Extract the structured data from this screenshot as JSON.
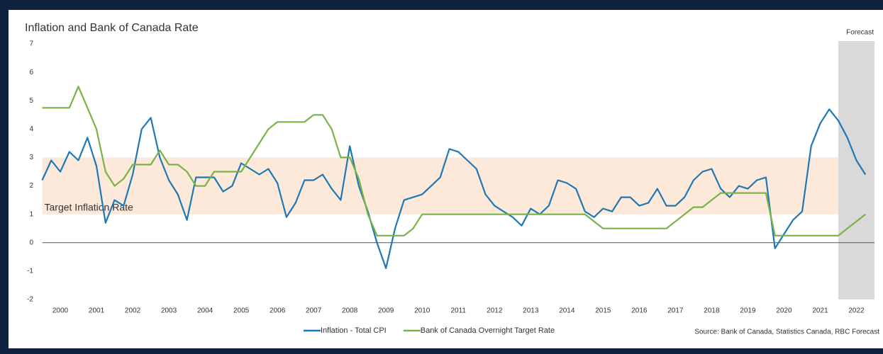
{
  "chart_data": {
    "type": "line",
    "title": "Inflation and Bank of Canada Rate",
    "forecast_label": "Forecast",
    "annotation": "Target Inflation Rate",
    "source": "Source: Bank of Canada, Statistics Canada, RBC Forecast",
    "target_band": [
      1,
      3
    ],
    "forecast_start": 2022,
    "xlim": [
      2000,
      2023
    ],
    "xticks": [
      2000,
      2001,
      2002,
      2003,
      2004,
      2005,
      2006,
      2007,
      2008,
      2009,
      2010,
      2011,
      2012,
      2013,
      2014,
      2015,
      2016,
      2017,
      2018,
      2019,
      2020,
      2021,
      2022
    ],
    "ylim": [
      -2,
      7
    ],
    "yticks": [
      -2,
      -1,
      0,
      1,
      2,
      3,
      4,
      5,
      6,
      7
    ],
    "x": [
      2000,
      2000.25,
      2000.5,
      2000.75,
      2001,
      2001.25,
      2001.5,
      2001.75,
      2002,
      2002.25,
      2002.5,
      2002.75,
      2003,
      2003.25,
      2003.5,
      2003.75,
      2004,
      2004.25,
      2004.5,
      2004.75,
      2005,
      2005.25,
      2005.5,
      2005.75,
      2006,
      2006.25,
      2006.5,
      2006.75,
      2007,
      2007.25,
      2007.5,
      2007.75,
      2008,
      2008.25,
      2008.5,
      2008.75,
      2009,
      2009.25,
      2009.5,
      2009.75,
      2010,
      2010.25,
      2010.5,
      2010.75,
      2011,
      2011.25,
      2011.5,
      2011.75,
      2012,
      2012.25,
      2012.5,
      2012.75,
      2013,
      2013.25,
      2013.5,
      2013.75,
      2014,
      2014.25,
      2014.5,
      2014.75,
      2015,
      2015.25,
      2015.5,
      2015.75,
      2016,
      2016.25,
      2016.5,
      2016.75,
      2017,
      2017.25,
      2017.5,
      2017.75,
      2018,
      2018.25,
      2018.5,
      2018.75,
      2019,
      2019.25,
      2019.5,
      2019.75,
      2020,
      2020.25,
      2020.5,
      2020.75,
      2021,
      2021.25,
      2021.5,
      2021.75,
      2022,
      2022.25,
      2022.5,
      2022.75
    ],
    "series": [
      {
        "name": "Inflation - Total CPI",
        "color": "#1f78b4",
        "values": [
          2.2,
          2.9,
          2.5,
          3.2,
          2.9,
          3.7,
          2.7,
          0.7,
          1.5,
          1.3,
          2.4,
          4.0,
          4.4,
          3.0,
          2.2,
          1.7,
          0.8,
          2.3,
          2.3,
          2.3,
          1.8,
          2.0,
          2.8,
          2.6,
          2.4,
          2.6,
          2.1,
          0.9,
          1.4,
          2.2,
          2.2,
          2.4,
          1.9,
          1.5,
          3.4,
          2.0,
          1.1,
          0.0,
          -0.9,
          0.5,
          1.5,
          1.6,
          1.7,
          2.0,
          2.3,
          3.3,
          3.2,
          2.9,
          2.6,
          1.7,
          1.3,
          1.1,
          0.9,
          0.6,
          1.2,
          1.0,
          1.3,
          2.2,
          2.1,
          1.9,
          1.1,
          0.9,
          1.2,
          1.1,
          1.6,
          1.6,
          1.3,
          1.4,
          1.9,
          1.3,
          1.3,
          1.6,
          2.2,
          2.5,
          2.6,
          1.9,
          1.6,
          2.0,
          1.9,
          2.2,
          2.3,
          -0.2,
          0.3,
          0.8,
          1.1,
          3.4,
          4.2,
          4.7,
          4.3,
          3.7,
          2.9,
          2.4
        ]
      },
      {
        "name": "Bank of Canada Overnight Target Rate",
        "color": "#78b445",
        "values": [
          4.75,
          4.75,
          4.75,
          4.75,
          5.5,
          4.75,
          4.0,
          2.5,
          2.0,
          2.25,
          2.75,
          2.75,
          2.75,
          3.25,
          2.75,
          2.75,
          2.5,
          2.0,
          2.0,
          2.5,
          2.5,
          2.5,
          2.5,
          3.0,
          3.5,
          4.0,
          4.25,
          4.25,
          4.25,
          4.25,
          4.5,
          4.5,
          4.0,
          3.0,
          3.0,
          2.25,
          1.0,
          0.25,
          0.25,
          0.25,
          0.25,
          0.5,
          1.0,
          1.0,
          1.0,
          1.0,
          1.0,
          1.0,
          1.0,
          1.0,
          1.0,
          1.0,
          1.0,
          1.0,
          1.0,
          1.0,
          1.0,
          1.0,
          1.0,
          1.0,
          1.0,
          0.75,
          0.5,
          0.5,
          0.5,
          0.5,
          0.5,
          0.5,
          0.5,
          0.5,
          0.75,
          1.0,
          1.25,
          1.25,
          1.5,
          1.75,
          1.75,
          1.75,
          1.75,
          1.75,
          1.75,
          0.25,
          0.25,
          0.25,
          0.25,
          0.25,
          0.25,
          0.25,
          0.25,
          0.5,
          0.75,
          1.0
        ]
      }
    ]
  }
}
